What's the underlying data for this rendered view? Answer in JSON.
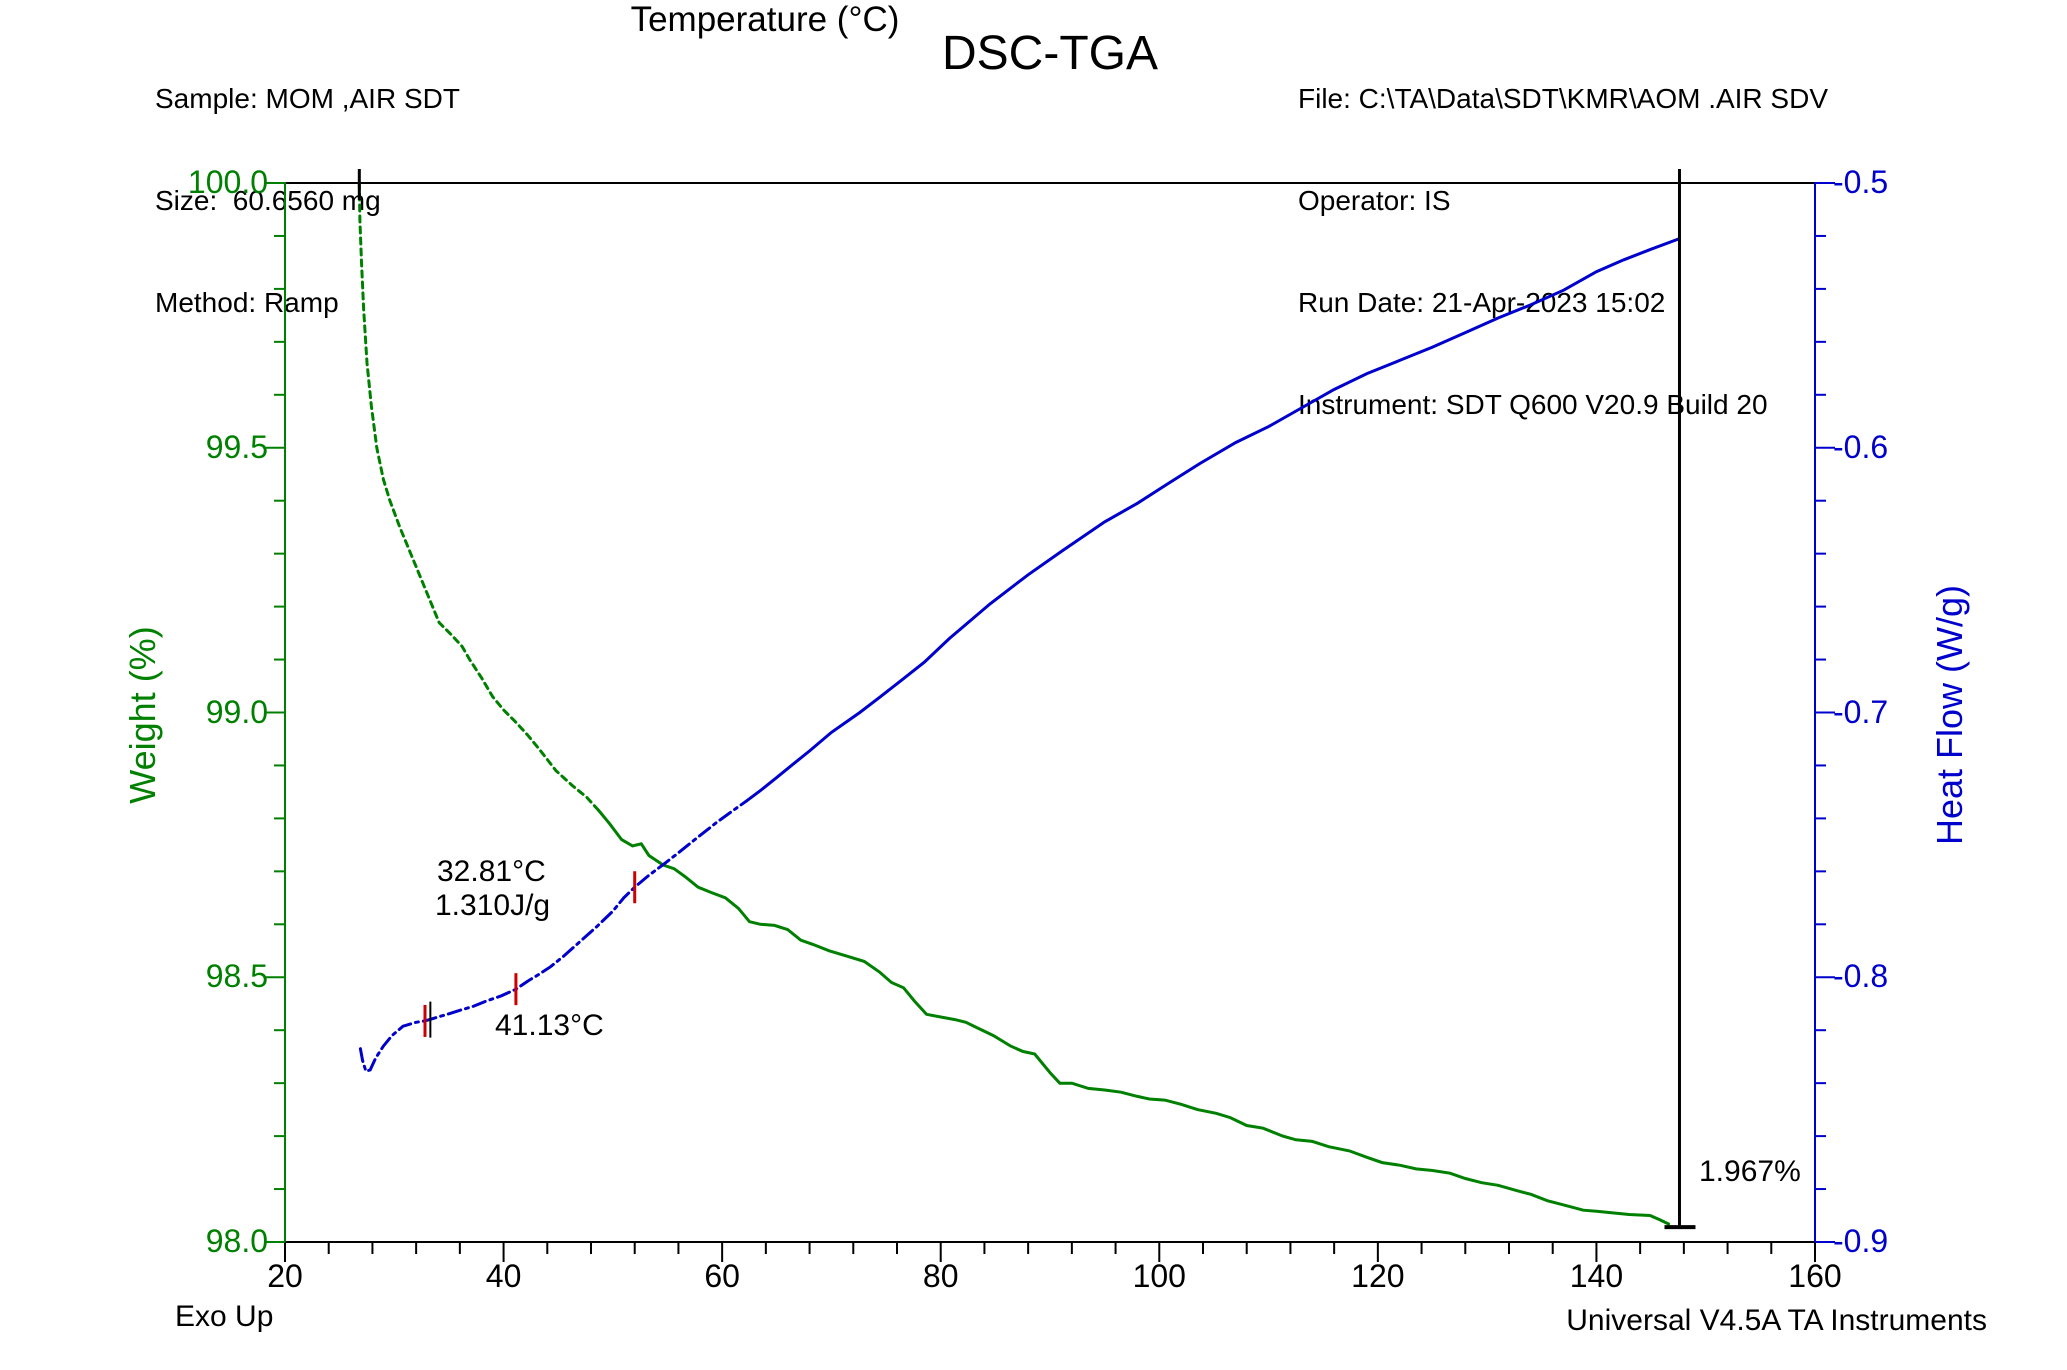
{
  "header": {
    "sample": "Sample: MOM ,AIR SDT",
    "size": "Size:  60.6560 mg",
    "method": "Method: Ramp",
    "title": "DSC-TGA",
    "file": "File: C:\\TA\\Data\\SDT\\KMR\\AOM .AIR SDV",
    "operator": "Operator: IS",
    "run_date": "Run Date: 21-Apr-2023 15:02",
    "instrument": "Instrument: SDT Q600 V20.9 Build 20"
  },
  "footer": {
    "exo_up": "Exo Up",
    "credit": "Universal V4.5A TA Instruments"
  },
  "annotations": {
    "onset_temp": "32.81°C",
    "enthalpy": "1.310J/g",
    "peak_temp": "41.13°C",
    "weight_loss": "1.967%"
  },
  "chart_data": {
    "type": "line",
    "title": "DSC-TGA",
    "xlabel": "Temperature (°C)",
    "ylabel_left": "Weight (%)",
    "ylabel_right": "Heat Flow (W/g)",
    "x_range": [
      20,
      160
    ],
    "y_left_range": [
      98.0,
      100.0
    ],
    "y_right_range": [
      -0.9,
      -0.5
    ],
    "grid": false,
    "colors": {
      "weight": "#008000",
      "heat_flow": "#0000cc",
      "hash_red": "#cc0000",
      "marker_black": "#000000"
    },
    "x_ticks": {
      "major": [
        {
          "t": 20,
          "label": "20"
        },
        {
          "t": 40,
          "label": "40"
        },
        {
          "t": 60,
          "label": "60"
        },
        {
          "t": 80,
          "label": "80"
        },
        {
          "t": 100,
          "label": "100"
        },
        {
          "t": 120,
          "label": "120"
        },
        {
          "t": 140,
          "label": "140"
        },
        {
          "t": 160,
          "label": "160"
        }
      ],
      "minor_step": 4
    },
    "y_left_ticks": {
      "major": [
        {
          "w": 100.0,
          "label": "100.0"
        },
        {
          "w": 99.5,
          "label": "99.5"
        },
        {
          "w": 99.0,
          "label": "99.0"
        },
        {
          "w": 98.5,
          "label": "98.5"
        },
        {
          "w": 98.0,
          "label": "98.0"
        }
      ],
      "minor_step": 0.1
    },
    "y_right_ticks": {
      "major": [
        {
          "h": -0.5,
          "label": "-0.5"
        },
        {
          "h": -0.6,
          "label": "-0.6"
        },
        {
          "h": -0.7,
          "label": "-0.7"
        },
        {
          "h": -0.8,
          "label": "-0.8"
        },
        {
          "h": -0.9,
          "label": "-0.9"
        }
      ],
      "minor_step": 0.02
    },
    "series": [
      {
        "name": "Weight",
        "axis": "left",
        "units": "%",
        "color": "#008000",
        "points": [
          [
            26.8,
            100.0
          ],
          [
            26.85,
            99.93
          ],
          [
            27.0,
            99.85
          ],
          [
            27.2,
            99.76
          ],
          [
            27.5,
            99.66
          ],
          [
            27.9,
            99.58
          ],
          [
            28.4,
            99.5
          ],
          [
            29.0,
            99.44
          ],
          [
            29.6,
            99.4
          ],
          [
            30.5,
            99.35
          ],
          [
            31.7,
            99.29
          ],
          [
            32.9,
            99.23
          ],
          [
            34.1,
            99.17
          ],
          [
            35.3,
            99.145
          ],
          [
            36.2,
            99.125
          ],
          [
            36.9,
            99.1
          ],
          [
            38.0,
            99.065
          ],
          [
            39.0,
            99.03
          ],
          [
            40.0,
            99.005
          ],
          [
            41.2,
            98.98
          ],
          [
            42.3,
            98.955
          ],
          [
            43.3,
            98.93
          ],
          [
            44.8,
            98.89
          ],
          [
            46.3,
            98.862
          ],
          [
            47.6,
            98.84
          ],
          [
            48.7,
            98.815
          ],
          [
            49.7,
            98.79
          ],
          [
            50.8,
            98.76
          ],
          [
            51.8,
            98.748
          ],
          [
            52.6,
            98.752
          ],
          [
            53.3,
            98.73
          ],
          [
            54.6,
            98.712
          ],
          [
            55.6,
            98.705
          ],
          [
            56.6,
            98.69
          ],
          [
            57.8,
            98.67
          ],
          [
            59.0,
            98.66
          ],
          [
            60.3,
            98.65
          ],
          [
            61.5,
            98.63
          ],
          [
            62.5,
            98.605
          ],
          [
            63.5,
            98.6
          ],
          [
            64.8,
            98.598
          ],
          [
            66.0,
            98.59
          ],
          [
            67.2,
            98.57
          ],
          [
            68.3,
            98.562
          ],
          [
            69.8,
            98.55
          ],
          [
            71.4,
            98.54
          ],
          [
            73.0,
            98.53
          ],
          [
            74.4,
            98.51
          ],
          [
            75.5,
            98.49
          ],
          [
            76.6,
            98.48
          ],
          [
            77.6,
            98.455
          ],
          [
            78.7,
            98.43
          ],
          [
            80.0,
            98.425
          ],
          [
            81.3,
            98.42
          ],
          [
            82.3,
            98.415
          ],
          [
            83.3,
            98.405
          ],
          [
            84.8,
            98.39
          ],
          [
            86.4,
            98.37
          ],
          [
            87.5,
            98.36
          ],
          [
            88.6,
            98.355
          ],
          [
            90.0,
            98.32
          ],
          [
            90.9,
            98.3
          ],
          [
            92.0,
            98.3
          ],
          [
            93.5,
            98.29
          ],
          [
            95.0,
            98.287
          ],
          [
            96.5,
            98.283
          ],
          [
            98.0,
            98.275
          ],
          [
            99.1,
            98.27
          ],
          [
            100.5,
            98.268
          ],
          [
            102.0,
            98.26
          ],
          [
            103.5,
            98.25
          ],
          [
            105.2,
            98.243
          ],
          [
            106.5,
            98.235
          ],
          [
            108.0,
            98.22
          ],
          [
            109.5,
            98.215
          ],
          [
            111.3,
            98.2
          ],
          [
            112.5,
            98.193
          ],
          [
            114.0,
            98.19
          ],
          [
            115.5,
            98.18
          ],
          [
            117.4,
            98.172
          ],
          [
            119.0,
            98.16
          ],
          [
            120.4,
            98.15
          ],
          [
            122.0,
            98.145
          ],
          [
            123.5,
            98.138
          ],
          [
            125.0,
            98.135
          ],
          [
            126.6,
            98.13
          ],
          [
            128.0,
            98.12
          ],
          [
            129.5,
            98.112
          ],
          [
            131.0,
            98.107
          ],
          [
            132.7,
            98.097
          ],
          [
            134.0,
            98.09
          ],
          [
            135.5,
            98.078
          ],
          [
            137.0,
            98.07
          ],
          [
            138.8,
            98.06
          ],
          [
            140.0,
            98.058
          ],
          [
            141.5,
            98.055
          ],
          [
            143.0,
            98.052
          ],
          [
            144.9,
            98.05
          ],
          [
            145.8,
            98.042
          ],
          [
            146.6,
            98.034
          ]
        ]
      },
      {
        "name": "Heat Flow",
        "axis": "right",
        "units": "W/g",
        "color": "#0000cc",
        "points": [
          [
            26.9,
            -0.827
          ],
          [
            27.1,
            -0.8315
          ],
          [
            27.4,
            -0.8355
          ],
          [
            27.8,
            -0.835
          ],
          [
            28.3,
            -0.8305
          ],
          [
            29.0,
            -0.826
          ],
          [
            29.8,
            -0.822
          ],
          [
            30.8,
            -0.8185
          ],
          [
            32.0,
            -0.817
          ],
          [
            32.81,
            -0.8165
          ],
          [
            34.0,
            -0.815
          ],
          [
            35.0,
            -0.8138
          ],
          [
            36.0,
            -0.8125
          ],
          [
            37.2,
            -0.811
          ],
          [
            38.4,
            -0.809
          ],
          [
            39.8,
            -0.807
          ],
          [
            41.13,
            -0.8045
          ],
          [
            42.2,
            -0.8015
          ],
          [
            43.2,
            -0.799
          ],
          [
            44.3,
            -0.796
          ],
          [
            45.5,
            -0.792
          ],
          [
            47.0,
            -0.7865
          ],
          [
            48.5,
            -0.781
          ],
          [
            50.0,
            -0.775
          ],
          [
            51.0,
            -0.77
          ],
          [
            52.0,
            -0.766
          ],
          [
            53.3,
            -0.7615
          ],
          [
            54.6,
            -0.7575
          ],
          [
            56.0,
            -0.753
          ],
          [
            57.5,
            -0.748
          ],
          [
            59.5,
            -0.7415
          ],
          [
            61.0,
            -0.737
          ],
          [
            62.2,
            -0.7335
          ],
          [
            63.5,
            -0.7295
          ],
          [
            65.0,
            -0.7245
          ],
          [
            66.5,
            -0.7195
          ],
          [
            68.0,
            -0.7145
          ],
          [
            70.0,
            -0.7075
          ],
          [
            72.6,
            -0.7
          ],
          [
            74.5,
            -0.694
          ],
          [
            76.5,
            -0.6875
          ],
          [
            78.5,
            -0.681
          ],
          [
            80.8,
            -0.672
          ],
          [
            84.5,
            -0.659
          ],
          [
            88.0,
            -0.648
          ],
          [
            91.1,
            -0.639
          ],
          [
            95.0,
            -0.628
          ],
          [
            98.0,
            -0.621
          ],
          [
            101.0,
            -0.613
          ],
          [
            103.7,
            -0.606
          ],
          [
            107.0,
            -0.598
          ],
          [
            110.0,
            -0.592
          ],
          [
            113.0,
            -0.585
          ],
          [
            116.0,
            -0.578
          ],
          [
            119.0,
            -0.572
          ],
          [
            122.0,
            -0.567
          ],
          [
            125.0,
            -0.562
          ],
          [
            128.0,
            -0.5565
          ],
          [
            131.0,
            -0.551
          ],
          [
            134.0,
            -0.546
          ],
          [
            137.0,
            -0.5405
          ],
          [
            140.0,
            -0.5335
          ],
          [
            142.5,
            -0.529
          ],
          [
            145.0,
            -0.525
          ],
          [
            147.6,
            -0.521
          ]
        ]
      }
    ],
    "markers": {
      "start_tick_t": 26.8,
      "delta_line_t": 147.6,
      "delta_line_bottom_w": 98.028,
      "hash_marks": [
        {
          "t": 32.81,
          "hf": -0.8165,
          "color": "#cc0000"
        },
        {
          "t": 33.3,
          "hf": -0.816,
          "color": "#000000"
        },
        {
          "t": 41.13,
          "hf": -0.8045,
          "color": "#cc0000"
        },
        {
          "t": 52.0,
          "hf": -0.766,
          "color": "#cc0000"
        }
      ]
    },
    "legend": "none"
  }
}
